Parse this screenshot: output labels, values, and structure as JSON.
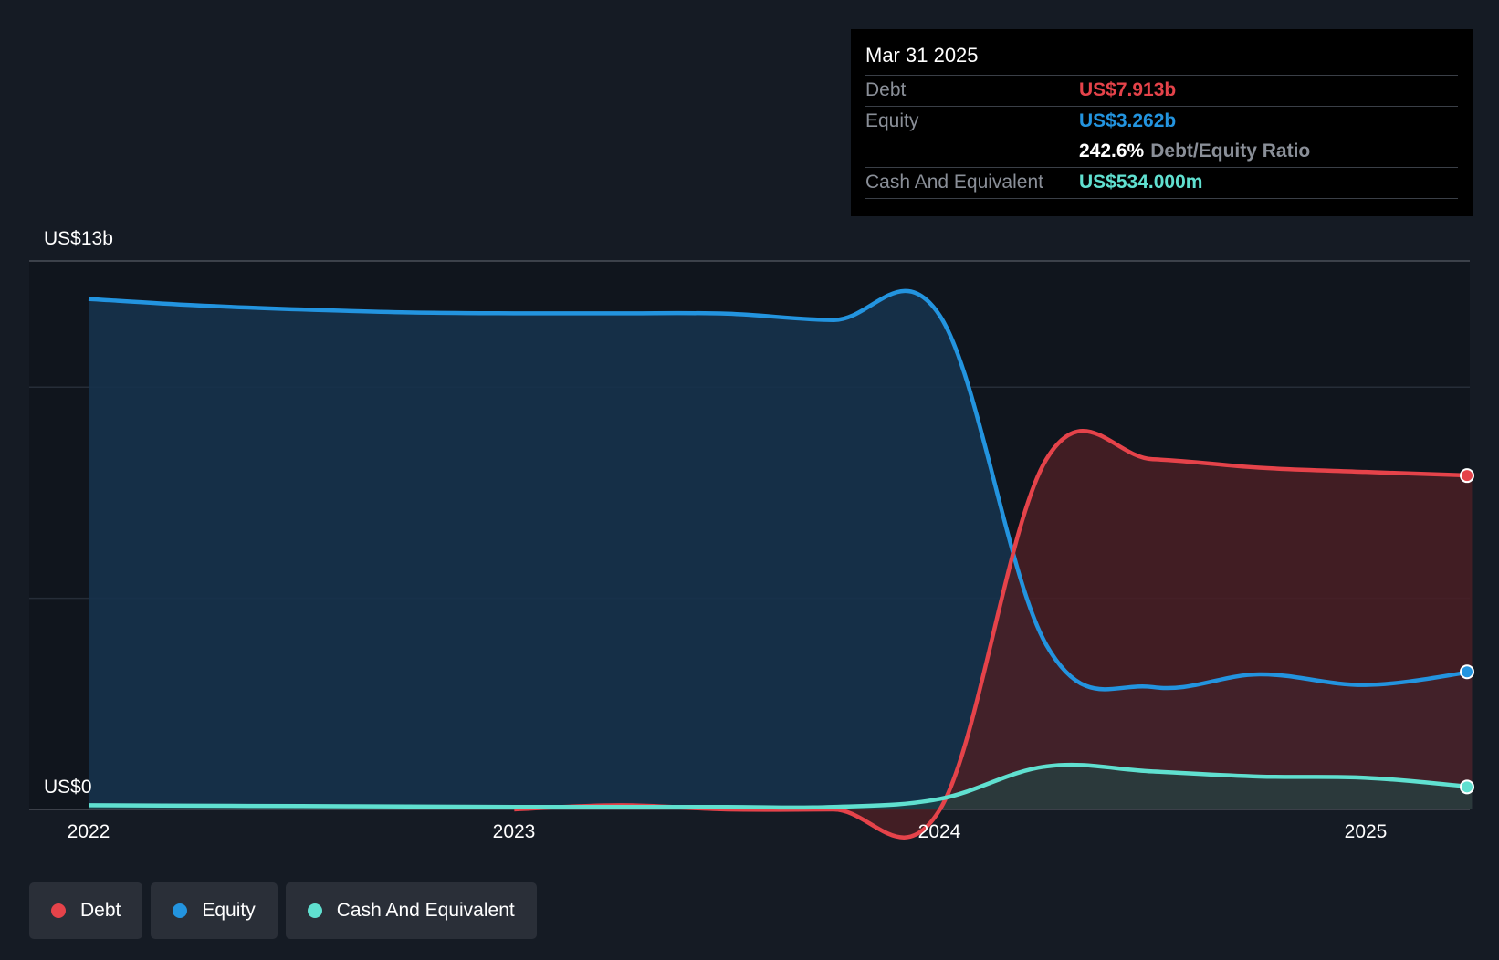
{
  "tooltip": {
    "date": "Mar 31 2025",
    "debt_label": "Debt",
    "debt_value": "US$7.913b",
    "equity_label": "Equity",
    "equity_value": "US$3.262b",
    "ratio_value": "242.6%",
    "ratio_label": "Debt/Equity Ratio",
    "cash_label": "Cash And Equivalent",
    "cash_value": "US$534.000m"
  },
  "legend": {
    "debt": "Debt",
    "equity": "Equity",
    "cash": "Cash And Equivalent"
  },
  "colors": {
    "debt": "#e5434a",
    "equity": "#2394df",
    "cash": "#60e0d0",
    "background": "#151b24",
    "plot_background": "#10151d"
  },
  "chart_data": {
    "type": "area",
    "y_top_label": "US$13b",
    "y_bottom_label": "US$0",
    "ylim": [
      0,
      13
    ],
    "xlim": [
      2022.0,
      2025.25
    ],
    "x_ticks": [
      {
        "value": 2022,
        "label": "2022"
      },
      {
        "value": 2023,
        "label": "2023"
      },
      {
        "value": 2024,
        "label": "2024"
      },
      {
        "value": 2025,
        "label": "2025"
      }
    ],
    "grid": true,
    "highlight_x": 2025.25,
    "series": [
      {
        "name": "Debt",
        "key": "debt",
        "x": [
          2023.0,
          2023.25,
          2023.5,
          2023.75,
          2024.0,
          2024.25,
          2024.5,
          2024.75,
          2025.0,
          2025.25
        ],
        "y": [
          0.0,
          0.1,
          0.0,
          0.0,
          0.0,
          8.3,
          8.3,
          8.1,
          8.0,
          7.913
        ]
      },
      {
        "name": "Equity",
        "key": "equity",
        "x": [
          2022.0,
          2022.25,
          2022.5,
          2022.75,
          2023.0,
          2023.25,
          2023.5,
          2023.75,
          2024.0,
          2024.25,
          2024.5,
          2024.75,
          2025.0,
          2025.25
        ],
        "y": [
          12.1,
          11.95,
          11.85,
          11.78,
          11.76,
          11.76,
          11.75,
          11.6,
          11.7,
          3.9,
          2.9,
          3.2,
          2.95,
          3.262
        ]
      },
      {
        "name": "Cash And Equivalent",
        "key": "cash",
        "x": [
          2022.0,
          2022.25,
          2022.5,
          2022.75,
          2023.0,
          2023.25,
          2023.5,
          2023.75,
          2024.0,
          2024.25,
          2024.5,
          2024.75,
          2025.0,
          2025.25
        ],
        "y": [
          0.1,
          0.09,
          0.08,
          0.07,
          0.06,
          0.06,
          0.06,
          0.06,
          0.25,
          1.02,
          0.9,
          0.78,
          0.75,
          0.534
        ]
      }
    ]
  }
}
